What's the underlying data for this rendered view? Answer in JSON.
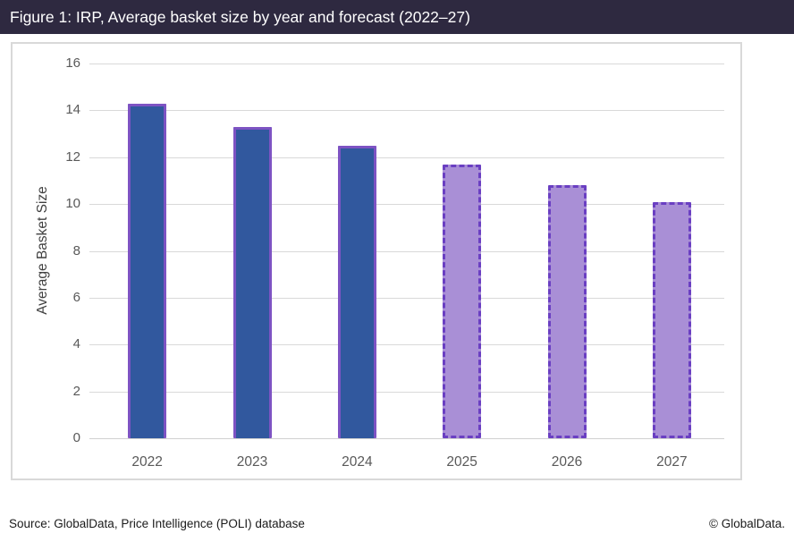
{
  "header": {
    "title": "Figure 1: IRP, Average basket size by year and forecast (2022–27)"
  },
  "chart_data": {
    "type": "bar",
    "title": "Figure 1: IRP, Average basket size by year and forecast (2022–27)",
    "categories": [
      "2022",
      "2023",
      "2024",
      "2025",
      "2026",
      "2027"
    ],
    "values": [
      14.3,
      13.3,
      12.5,
      11.7,
      10.8,
      10.1
    ],
    "forecast": [
      false,
      false,
      false,
      true,
      true,
      true
    ],
    "xlabel": "",
    "ylabel": "Average Basket Size",
    "ylim": [
      0,
      16
    ],
    "yticks": [
      0,
      2,
      4,
      6,
      8,
      10,
      12,
      14,
      16
    ],
    "grid": true,
    "legend_position": "none",
    "colors": {
      "actual_fill": "#31589E",
      "actual_border": "#7D53C3",
      "forecast_fill": "#A98FD6",
      "forecast_border": "#6A3FC2",
      "header_background": "#2E2940",
      "gridline": "#D9D9D9",
      "tick_label": "#595959"
    }
  },
  "footer": {
    "source": "Source: GlobalData, Price Intelligence (POLI) database",
    "copyright": "© GlobalData."
  }
}
